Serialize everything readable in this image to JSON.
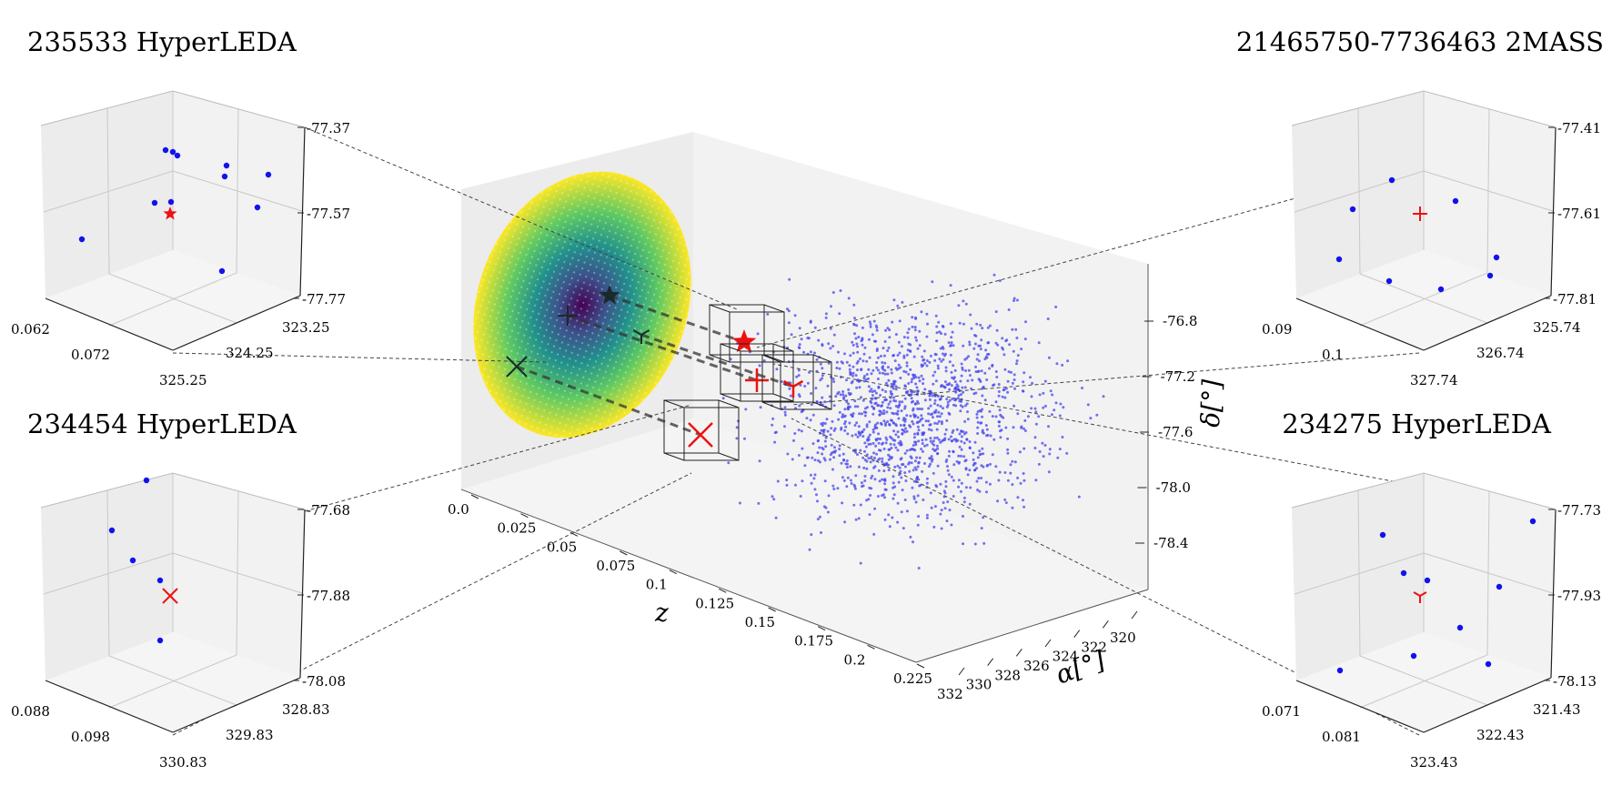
{
  "chart_data": [
    {
      "type": "scatter3d",
      "role": "main",
      "xlabel": "z",
      "ylabel": "α[°]",
      "zlabel": "δ[°]",
      "z_ticks": [
        "0.0",
        "0.025",
        "0.05",
        "0.075",
        "0.1",
        "0.125",
        "0.15",
        "0.175",
        "0.2",
        "0.225"
      ],
      "ra_ticks": [
        "332",
        "330",
        "328",
        "326",
        "324",
        "322",
        "320"
      ],
      "dec_ticks": [
        "-76.8",
        "-77.2",
        "-77.6",
        "-78.0",
        "-78.4"
      ],
      "background_points": {
        "color": "#4444ee",
        "count": 1400,
        "z_range": [
          0.06,
          0.23
        ],
        "ra_range": [
          320,
          332
        ],
        "dec_range": [
          -78.4,
          -76.6
        ]
      },
      "projection_density": {
        "colormap": "viridis",
        "description_plane": "z = 0 back wall"
      },
      "targets": [
        {
          "name": "235533 HyperLEDA",
          "marker": "star",
          "color": "#ee1111"
        },
        {
          "name": "21465750-7736463 2MASS",
          "marker": "plus",
          "color": "#ee1111"
        },
        {
          "name": "234454 HyperLEDA",
          "marker": "x",
          "color": "#ee1111"
        },
        {
          "name": "234275 HyperLEDA",
          "marker": "tri",
          "color": "#ee1111"
        }
      ]
    },
    {
      "type": "scatter3d",
      "role": "inset",
      "title": "235533 HyperLEDA",
      "marker": "star",
      "marker_color": "#ee1111",
      "x_ticks": [
        "0.062",
        "0.072"
      ],
      "y_ticks": [
        "325.25",
        "324.25",
        "323.25"
      ],
      "z_ticks": [
        "-77.37",
        "-77.57",
        "-77.77"
      ]
    },
    {
      "type": "scatter3d",
      "role": "inset",
      "title": "21465750-7736463 2MASS",
      "marker": "plus",
      "marker_color": "#ee1111",
      "x_ticks": [
        "0.09",
        "0.1"
      ],
      "y_ticks": [
        "327.74",
        "326.74",
        "325.74"
      ],
      "z_ticks": [
        "-77.41",
        "-77.61",
        "-77.81"
      ]
    },
    {
      "type": "scatter3d",
      "role": "inset",
      "title": "234454 HyperLEDA",
      "marker": "x",
      "marker_color": "#ee1111",
      "x_ticks": [
        "0.088",
        "0.098"
      ],
      "y_ticks": [
        "330.83",
        "329.83",
        "328.83"
      ],
      "z_ticks": [
        "-77.68",
        "-77.88",
        "-78.08"
      ]
    },
    {
      "type": "scatter3d",
      "role": "inset",
      "title": "234275 HyperLEDA",
      "marker": "tri",
      "marker_color": "#ee1111",
      "x_ticks": [
        "0.071",
        "0.081"
      ],
      "y_ticks": [
        "323.43",
        "322.43",
        "321.43"
      ],
      "z_ticks": [
        "-77.73",
        "-77.93",
        "-78.13"
      ]
    }
  ]
}
